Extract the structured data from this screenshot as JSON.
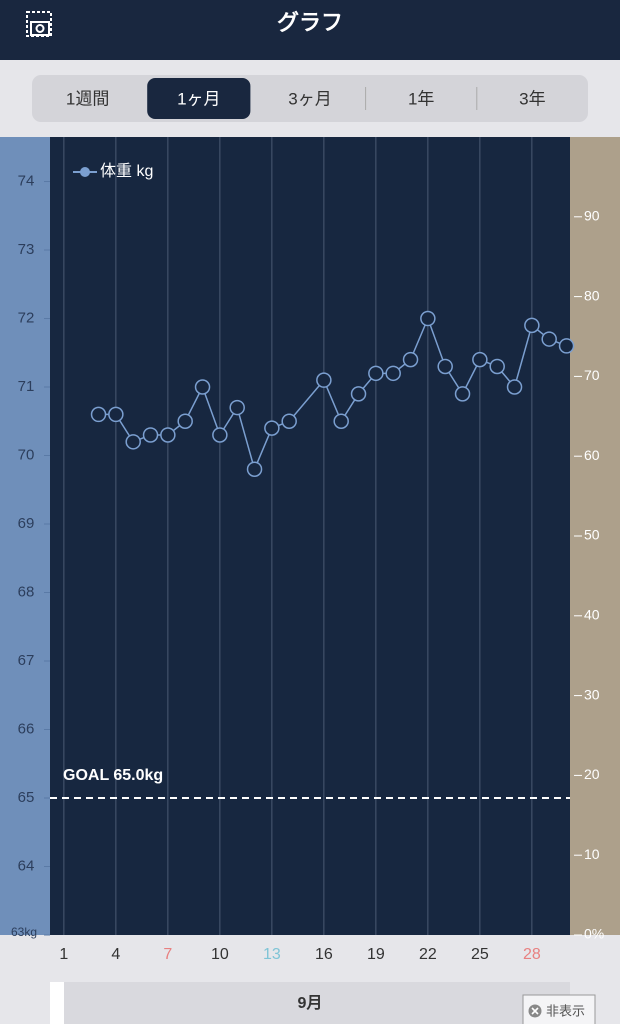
{
  "header": {
    "title": "グラフ"
  },
  "tabs": {
    "items": [
      "1週間",
      "1ヶ月",
      "3ヶ月",
      "1年",
      "3年"
    ],
    "selected": 1
  },
  "chart_data": {
    "type": "line",
    "series": [
      {
        "name": "体重 kg",
        "color": "#7b9fd0",
        "values": [
          70.6,
          70.6,
          70.2,
          70.3,
          70.3,
          70.5,
          71.0,
          70.3,
          70.7,
          69.8,
          70.4,
          70.5,
          71.1,
          70.5,
          70.9,
          71.2,
          71.2,
          71.4,
          72.0,
          71.3,
          70.9,
          71.4,
          71.3,
          71.0,
          71.9,
          71.7,
          71.6
        ]
      }
    ],
    "x": [
      3,
      4,
      5,
      6,
      7,
      8,
      9,
      10,
      11,
      12,
      13,
      14,
      16,
      17,
      18,
      19,
      20,
      21,
      22,
      23,
      24,
      25,
      26,
      27,
      28,
      29,
      30
    ],
    "xlim": [
      0.2,
      30.2
    ],
    "xticks": [
      1,
      4,
      7,
      10,
      13,
      16,
      19,
      22,
      25,
      28
    ],
    "xtick_colors": [
      "#333333",
      "#333333",
      "#e88080",
      "#333333",
      "#7fc4d6",
      "#333333",
      "#333333",
      "#333333",
      "#333333",
      "#e88080"
    ],
    "ylim": [
      63,
      74.65
    ],
    "yticks": [
      {
        "value": 63,
        "label": "63kg"
      },
      64,
      65,
      66,
      67,
      68,
      69,
      70,
      71,
      72,
      73,
      74
    ],
    "y2lim": [
      0,
      100
    ],
    "y2ticks": [
      {
        "value": 0,
        "label": "0%"
      },
      10,
      20,
      30,
      40,
      50,
      60,
      70,
      80,
      90
    ],
    "goal": {
      "value": 65,
      "label": "GOAL 65.0kg"
    },
    "grid": true
  },
  "footer": {
    "month": "9月",
    "hide_button": "非表示"
  }
}
